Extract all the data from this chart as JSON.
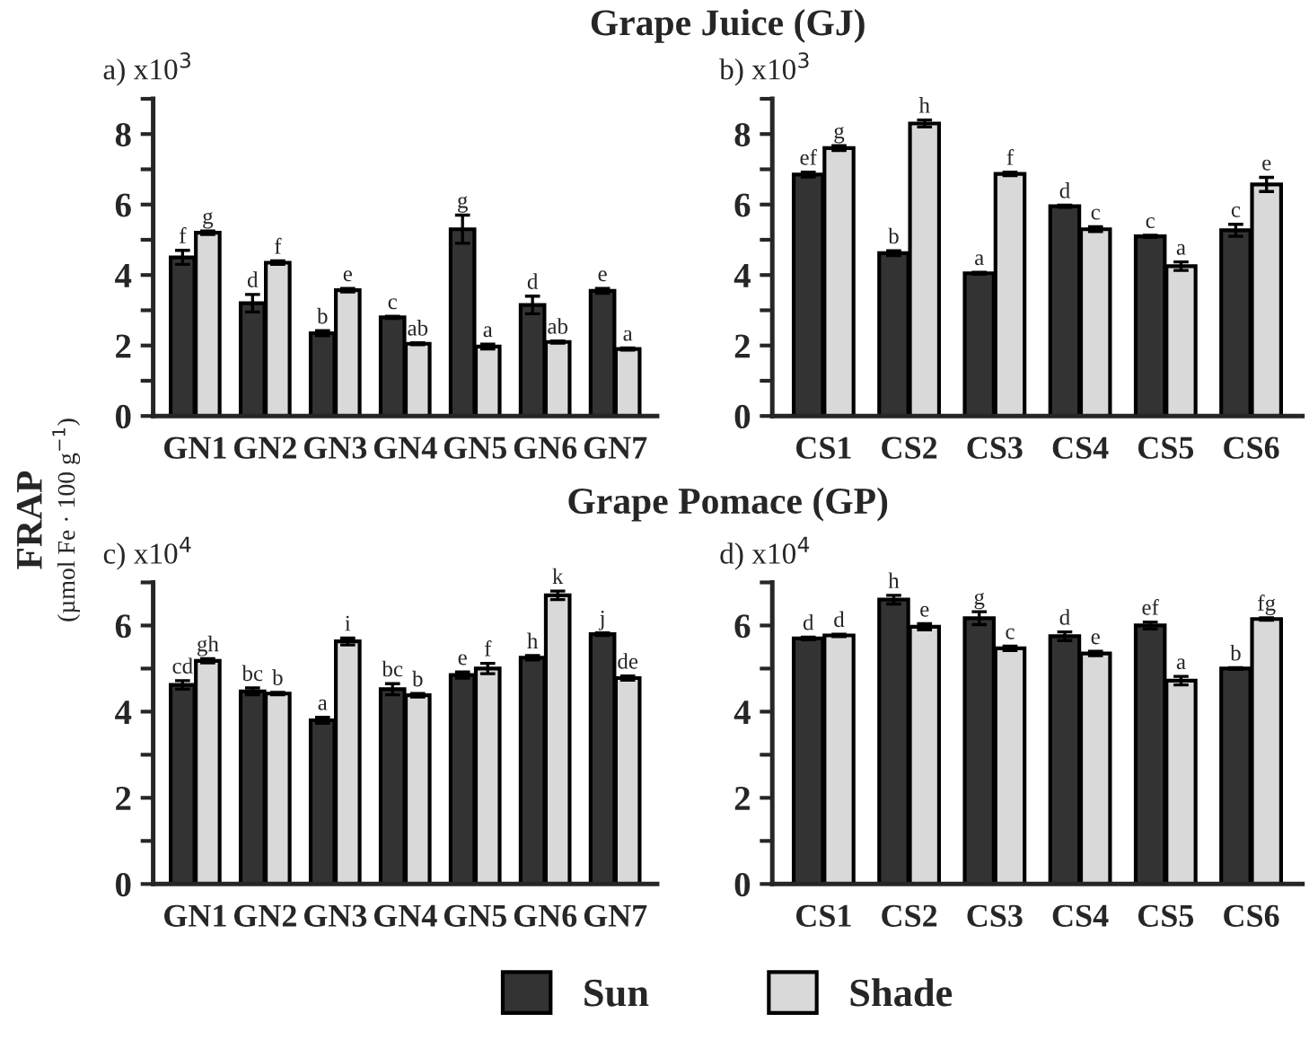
{
  "chart_data": [
    {
      "type": "bar",
      "title": "Grape Juice (GJ)",
      "ylabel": "FRAP",
      "annotations": [
        "a) x10$^{3}$",
        "(µmol Fe · 100 g$^{−1}$)"
      ],
      "legend": "bottom",
      "categories": [
        "GN1",
        "GN2",
        "GN3",
        "GN4",
        "GN5",
        "GN6",
        "GN7"
      ],
      "ylim": [
        0,
        9
      ],
      "yticks": [
        0,
        {
          "value": 1,
          "label": null
        },
        2,
        {
          "value": 3,
          "label": null
        },
        4,
        {
          "value": 5,
          "label": null
        },
        6,
        {
          "value": 7,
          "label": null
        },
        8,
        {
          "value": 9,
          "label": null
        }
      ],
      "series": [
        {
          "name": "Sun",
          "color": "#333333",
          "values": [
            4.5,
            3.2,
            2.35,
            2.8,
            5.3,
            3.15,
            3.55
          ],
          "errors": [
            0.2,
            0.25,
            0.07,
            0.03,
            0.4,
            0.25,
            0.07
          ],
          "value_labels": [
            "f",
            "d",
            "b",
            "c",
            "g",
            "d",
            "e"
          ]
        },
        {
          "name": "Shade",
          "color": "#d9d9d9",
          "values": [
            5.2,
            4.35,
            3.57,
            2.05,
            1.97,
            2.1,
            1.9
          ],
          "errors": [
            0.05,
            0.05,
            0.05,
            0.03,
            0.07,
            0.03,
            0.03
          ],
          "value_labels": [
            "g",
            "f",
            "e",
            "ab",
            "a",
            "ab",
            "a"
          ]
        }
      ]
    },
    {
      "type": "bar",
      "annotations": [
        "b) x10$^{3}$"
      ],
      "categories": [
        "CS1",
        "CS2",
        "CS3",
        "CS4",
        "CS5",
        "CS6"
      ],
      "ylim": [
        0,
        9
      ],
      "yticks": [
        0,
        {
          "value": 1,
          "label": null
        },
        2,
        {
          "value": 3,
          "label": null
        },
        4,
        {
          "value": 5,
          "label": null
        },
        6,
        {
          "value": 7,
          "label": null
        },
        8,
        {
          "value": 9,
          "label": null
        }
      ],
      "series": [
        {
          "color": "#333333",
          "values": [
            6.85,
            4.62,
            4.05,
            5.95,
            5.1,
            5.27
          ],
          "errors": [
            0.07,
            0.07,
            0.03,
            0.03,
            0.03,
            0.17
          ],
          "value_labels": [
            "ef",
            "b",
            "a",
            "d",
            "c",
            "c"
          ]
        },
        {
          "color": "#d9d9d9",
          "values": [
            7.6,
            8.3,
            6.87,
            5.3,
            4.25,
            6.57
          ],
          "errors": [
            0.07,
            0.1,
            0.05,
            0.07,
            0.12,
            0.2
          ],
          "value_labels": [
            "g",
            "h",
            "f",
            "c",
            "a",
            "e"
          ]
        }
      ]
    },
    {
      "type": "bar",
      "title": "Grape Pomace (GP)",
      "annotations": [
        "c) x10$^{4}$"
      ],
      "categories": [
        "GN1",
        "GN2",
        "GN3",
        "GN4",
        "GN5",
        "GN6",
        "GN7"
      ],
      "ylim": [
        0,
        7
      ],
      "yticks": [
        0,
        {
          "value": 1,
          "label": null
        },
        2,
        {
          "value": 3,
          "label": null
        },
        4,
        {
          "value": 5,
          "label": null
        },
        6,
        {
          "value": 7,
          "label": null
        }
      ],
      "series": [
        {
          "color": "#333333",
          "values": [
            4.62,
            4.47,
            3.8,
            4.52,
            4.85,
            5.25,
            5.8
          ],
          "errors": [
            0.1,
            0.08,
            0.07,
            0.13,
            0.07,
            0.05,
            0.03
          ],
          "value_labels": [
            "cd",
            "bc",
            "a",
            "bc",
            "e",
            "h",
            "j"
          ]
        },
        {
          "color": "#d9d9d9",
          "values": [
            5.18,
            4.42,
            5.63,
            4.38,
            5.0,
            6.7,
            4.78
          ],
          "errors": [
            0.05,
            0.03,
            0.08,
            0.04,
            0.12,
            0.1,
            0.05
          ],
          "value_labels": [
            "gh",
            "b",
            "i",
            "b",
            "f",
            "k",
            "de"
          ]
        }
      ]
    },
    {
      "type": "bar",
      "annotations": [
        "d) x10$^{4}$"
      ],
      "categories": [
        "CS1",
        "CS2",
        "CS3",
        "CS4",
        "CS5",
        "CS6"
      ],
      "ylim": [
        0,
        7
      ],
      "yticks": [
        0,
        {
          "value": 1,
          "label": null
        },
        2,
        {
          "value": 3,
          "label": null
        },
        4,
        {
          "value": 5,
          "label": null
        },
        6,
        {
          "value": 7,
          "label": null
        }
      ],
      "series": [
        {
          "color": "#333333",
          "values": [
            5.7,
            6.6,
            6.17,
            5.75,
            6.0,
            5.0
          ],
          "errors": [
            0.03,
            0.1,
            0.15,
            0.1,
            0.08,
            0.02
          ],
          "value_labels": [
            "d",
            "h",
            "g",
            "d",
            "ef",
            "b"
          ]
        },
        {
          "color": "#d9d9d9",
          "values": [
            5.77,
            5.97,
            5.47,
            5.35,
            4.72,
            6.15
          ],
          "errors": [
            0.03,
            0.07,
            0.05,
            0.05,
            0.1,
            0.03
          ],
          "value_labels": [
            "d",
            "e",
            "c",
            "e",
            "a",
            "fg"
          ]
        }
      ]
    }
  ]
}
